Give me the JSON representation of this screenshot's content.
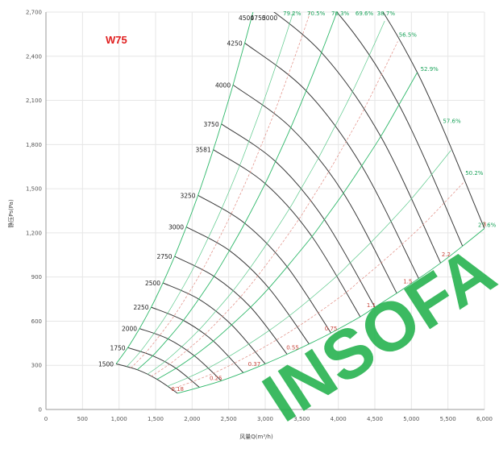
{
  "chart_data": {
    "type": "line",
    "title": "W75",
    "xlabel": "风量Q(m³/h)",
    "ylabel": "静压Ps(Pa)",
    "xlim": [
      0,
      6000
    ],
    "ylim": [
      0,
      2700
    ],
    "x_ticks": [
      "0",
      "500",
      "1,000",
      "1,500",
      "2,000",
      "2,500",
      "3,000",
      "3,500",
      "4,000",
      "4,500",
      "5,000",
      "5,500",
      "6,000"
    ],
    "x_tick_values": [
      0,
      500,
      1000,
      1500,
      2000,
      2500,
      3000,
      3500,
      4000,
      4500,
      5000,
      5500,
      6000
    ],
    "y_ticks": [
      "0",
      "300",
      "600",
      "900",
      "1,200",
      "1,500",
      "1,800",
      "2,100",
      "2,400",
      "2,700"
    ],
    "y_tick_values": [
      0,
      300,
      600,
      900,
      1200,
      1500,
      1800,
      2100,
      2400,
      2700
    ],
    "grid": true,
    "speed_series": [
      {
        "name": "1500",
        "points": [
          [
            960,
            310
          ],
          [
            1250,
            270
          ],
          [
            1520,
            205
          ],
          [
            1800,
            110
          ]
        ]
      },
      {
        "name": "1750",
        "points": [
          [
            1120,
            420
          ],
          [
            1460,
            365
          ],
          [
            1780,
            280
          ],
          [
            2100,
            150
          ]
        ]
      },
      {
        "name": "2000",
        "points": [
          [
            1280,
            550
          ],
          [
            1670,
            480
          ],
          [
            2030,
            365
          ],
          [
            2400,
            195
          ]
        ]
      },
      {
        "name": "2250",
        "points": [
          [
            1440,
            695
          ],
          [
            1880,
            605
          ],
          [
            2290,
            465
          ],
          [
            2700,
            250
          ]
        ]
      },
      {
        "name": "2500",
        "points": [
          [
            1600,
            860
          ],
          [
            2090,
            750
          ],
          [
            2540,
            575
          ],
          [
            3000,
            310
          ]
        ]
      },
      {
        "name": "2750",
        "points": [
          [
            1760,
            1040
          ],
          [
            2300,
            905
          ],
          [
            2800,
            695
          ],
          [
            3300,
            375
          ]
        ]
      },
      {
        "name": "3000",
        "points": [
          [
            1920,
            1240
          ],
          [
            2510,
            1080
          ],
          [
            3050,
            825
          ],
          [
            3600,
            445
          ]
        ]
      },
      {
        "name": "3250",
        "points": [
          [
            2080,
            1455
          ],
          [
            2720,
            1265
          ],
          [
            3300,
            970
          ],
          [
            3900,
            520
          ]
        ]
      },
      {
        "name": "3581",
        "points": [
          [
            2290,
            1765
          ],
          [
            3000,
            1535
          ],
          [
            3640,
            1175
          ],
          [
            4300,
            630
          ]
        ]
      },
      {
        "name": "3750",
        "points": [
          [
            2400,
            1940
          ],
          [
            3140,
            1685
          ],
          [
            3810,
            1290
          ],
          [
            4500,
            695
          ]
        ]
      },
      {
        "name": "4000",
        "points": [
          [
            2560,
            2205
          ],
          [
            3350,
            1915
          ],
          [
            4070,
            1470
          ],
          [
            4800,
            790
          ]
        ]
      },
      {
        "name": "4250",
        "points": [
          [
            2720,
            2490
          ],
          [
            3560,
            2165
          ],
          [
            4320,
            1655
          ],
          [
            5100,
            890
          ]
        ]
      },
      {
        "name": "4500",
        "points": [
          [
            2880,
            2790
          ],
          [
            3770,
            2425
          ],
          [
            4580,
            1855
          ],
          [
            5400,
            995
          ]
        ]
      },
      {
        "name": "4750",
        "points": [
          [
            3040,
            3110
          ],
          [
            3980,
            2700
          ],
          [
            4830,
            2070
          ],
          [
            5700,
            1110
          ]
        ]
      },
      {
        "name": "5000",
        "points": [
          [
            3200,
            3440
          ],
          [
            4190,
            2990
          ],
          [
            5080,
            2290
          ],
          [
            6000,
            1230
          ]
        ]
      }
    ],
    "efficiency_labels": [
      "79.2%",
      "70.5%",
      "70.3%",
      "69.6%",
      "38.7%",
      "56.5%",
      "52.9%",
      "57.6%",
      "50.2%",
      "27.6%"
    ],
    "power_labels": [
      "0.18",
      "0.25",
      "0.37",
      "0.55",
      "0.75",
      "1.1",
      "1.5",
      "2.2",
      "3"
    ],
    "watermark": "INSOFA"
  }
}
